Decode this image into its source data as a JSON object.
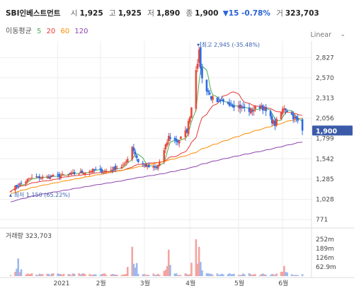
{
  "header": {
    "stock_name": "SBI인베스트먼트",
    "open_label": "시",
    "open": "1,925",
    "high_label": "고",
    "high": "1,925",
    "low_label": "저",
    "low": "1,890",
    "close_label": "종",
    "close": "1,900",
    "change": "▼15 -0.78%",
    "volume_label": "거",
    "volume": "323,703"
  },
  "ma_legend": {
    "label": "이동평균",
    "items": [
      {
        "period": "5",
        "color": "#4caf50"
      },
      {
        "period": "20",
        "color": "#e53935"
      },
      {
        "period": "60",
        "color": "#fb8c00"
      },
      {
        "period": "120",
        "color": "#8e44ad"
      }
    ]
  },
  "scale_mode": "Linear",
  "chart_data": {
    "type": "candlestick",
    "price_axis": {
      "ticks": [
        "2,827",
        "2,570",
        "2,313",
        "2,056",
        "1,799",
        "1,542",
        "1,285",
        "1,028",
        "771"
      ],
      "tick_values": [
        2827,
        2570,
        2313,
        2056,
        1799,
        1542,
        1285,
        1028,
        771
      ],
      "current_price_label": "1,900",
      "current_price": 1900
    },
    "annotations": {
      "high": {
        "text": "최고 2,945 (-35.48%)",
        "value": 2945,
        "date": "2021-04-07"
      },
      "low": {
        "text": "최저 1,150 (65.22%)",
        "value": 1150,
        "date": "2020-12-04"
      }
    },
    "volume_panel": {
      "title": "거래량",
      "value": "323,703",
      "ticks": [
        "252m",
        "189m",
        "126m",
        "62.9m"
      ],
      "tick_values": [
        252,
        189,
        126,
        62.9
      ]
    },
    "x_axis": {
      "labels": [
        "2021",
        "2월",
        "3월",
        "4월",
        "5월",
        "6월"
      ],
      "dates": [
        "2021-01-04",
        "2021-02-01",
        "2021-03-02",
        "2021-04-01",
        "2021-05-03",
        "2021-06-01"
      ]
    },
    "price_keyframes": [
      [
        "2020-12-04",
        1150
      ],
      [
        "2020-12-11",
        1230
      ],
      [
        "2020-12-18",
        1300
      ],
      [
        "2020-12-28",
        1310
      ],
      [
        "2021-01-07",
        1330
      ],
      [
        "2021-01-14",
        1350
      ],
      [
        "2021-01-21",
        1370
      ],
      [
        "2021-01-28",
        1400
      ],
      [
        "2021-02-04",
        1380
      ],
      [
        "2021-02-10",
        1420
      ],
      [
        "2021-02-17",
        1460
      ],
      [
        "2021-02-22",
        1700
      ],
      [
        "2021-02-26",
        1510
      ],
      [
        "2021-03-04",
        1440
      ],
      [
        "2021-03-10",
        1420
      ],
      [
        "2021-03-15",
        1640
      ],
      [
        "2021-03-18",
        1820
      ],
      [
        "2021-03-24",
        1760
      ],
      [
        "2021-03-30",
        1900
      ],
      [
        "2021-04-02",
        2200
      ],
      [
        "2021-04-05",
        2700
      ],
      [
        "2021-04-07",
        2880
      ],
      [
        "2021-04-09",
        2550
      ],
      [
        "2021-04-14",
        2350
      ],
      [
        "2021-04-19",
        2230
      ],
      [
        "2021-04-26",
        2260
      ],
      [
        "2021-05-04",
        2200
      ],
      [
        "2021-05-11",
        2150
      ],
      [
        "2021-05-18",
        2220
      ],
      [
        "2021-05-24",
        2050
      ],
      [
        "2021-05-27",
        1980
      ],
      [
        "2021-06-02",
        2200
      ],
      [
        "2021-06-07",
        2100
      ],
      [
        "2021-06-11",
        2010
      ],
      [
        "2021-06-14",
        1900
      ]
    ],
    "ma_end_values": {
      "ma5": 1960,
      "ma20": 2060,
      "ma60": 1990,
      "ma120": 1720
    },
    "ma_start_values": {
      "ma20": 1180,
      "ma60": 1080,
      "ma120": 920
    },
    "volume_peaks": [
      [
        "2020-12-09",
        120
      ],
      [
        "2021-02-22",
        200
      ],
      [
        "2021-03-18",
        180
      ],
      [
        "2021-04-05",
        252
      ],
      [
        "2021-04-07",
        200
      ],
      [
        "2021-06-02",
        70
      ]
    ]
  }
}
